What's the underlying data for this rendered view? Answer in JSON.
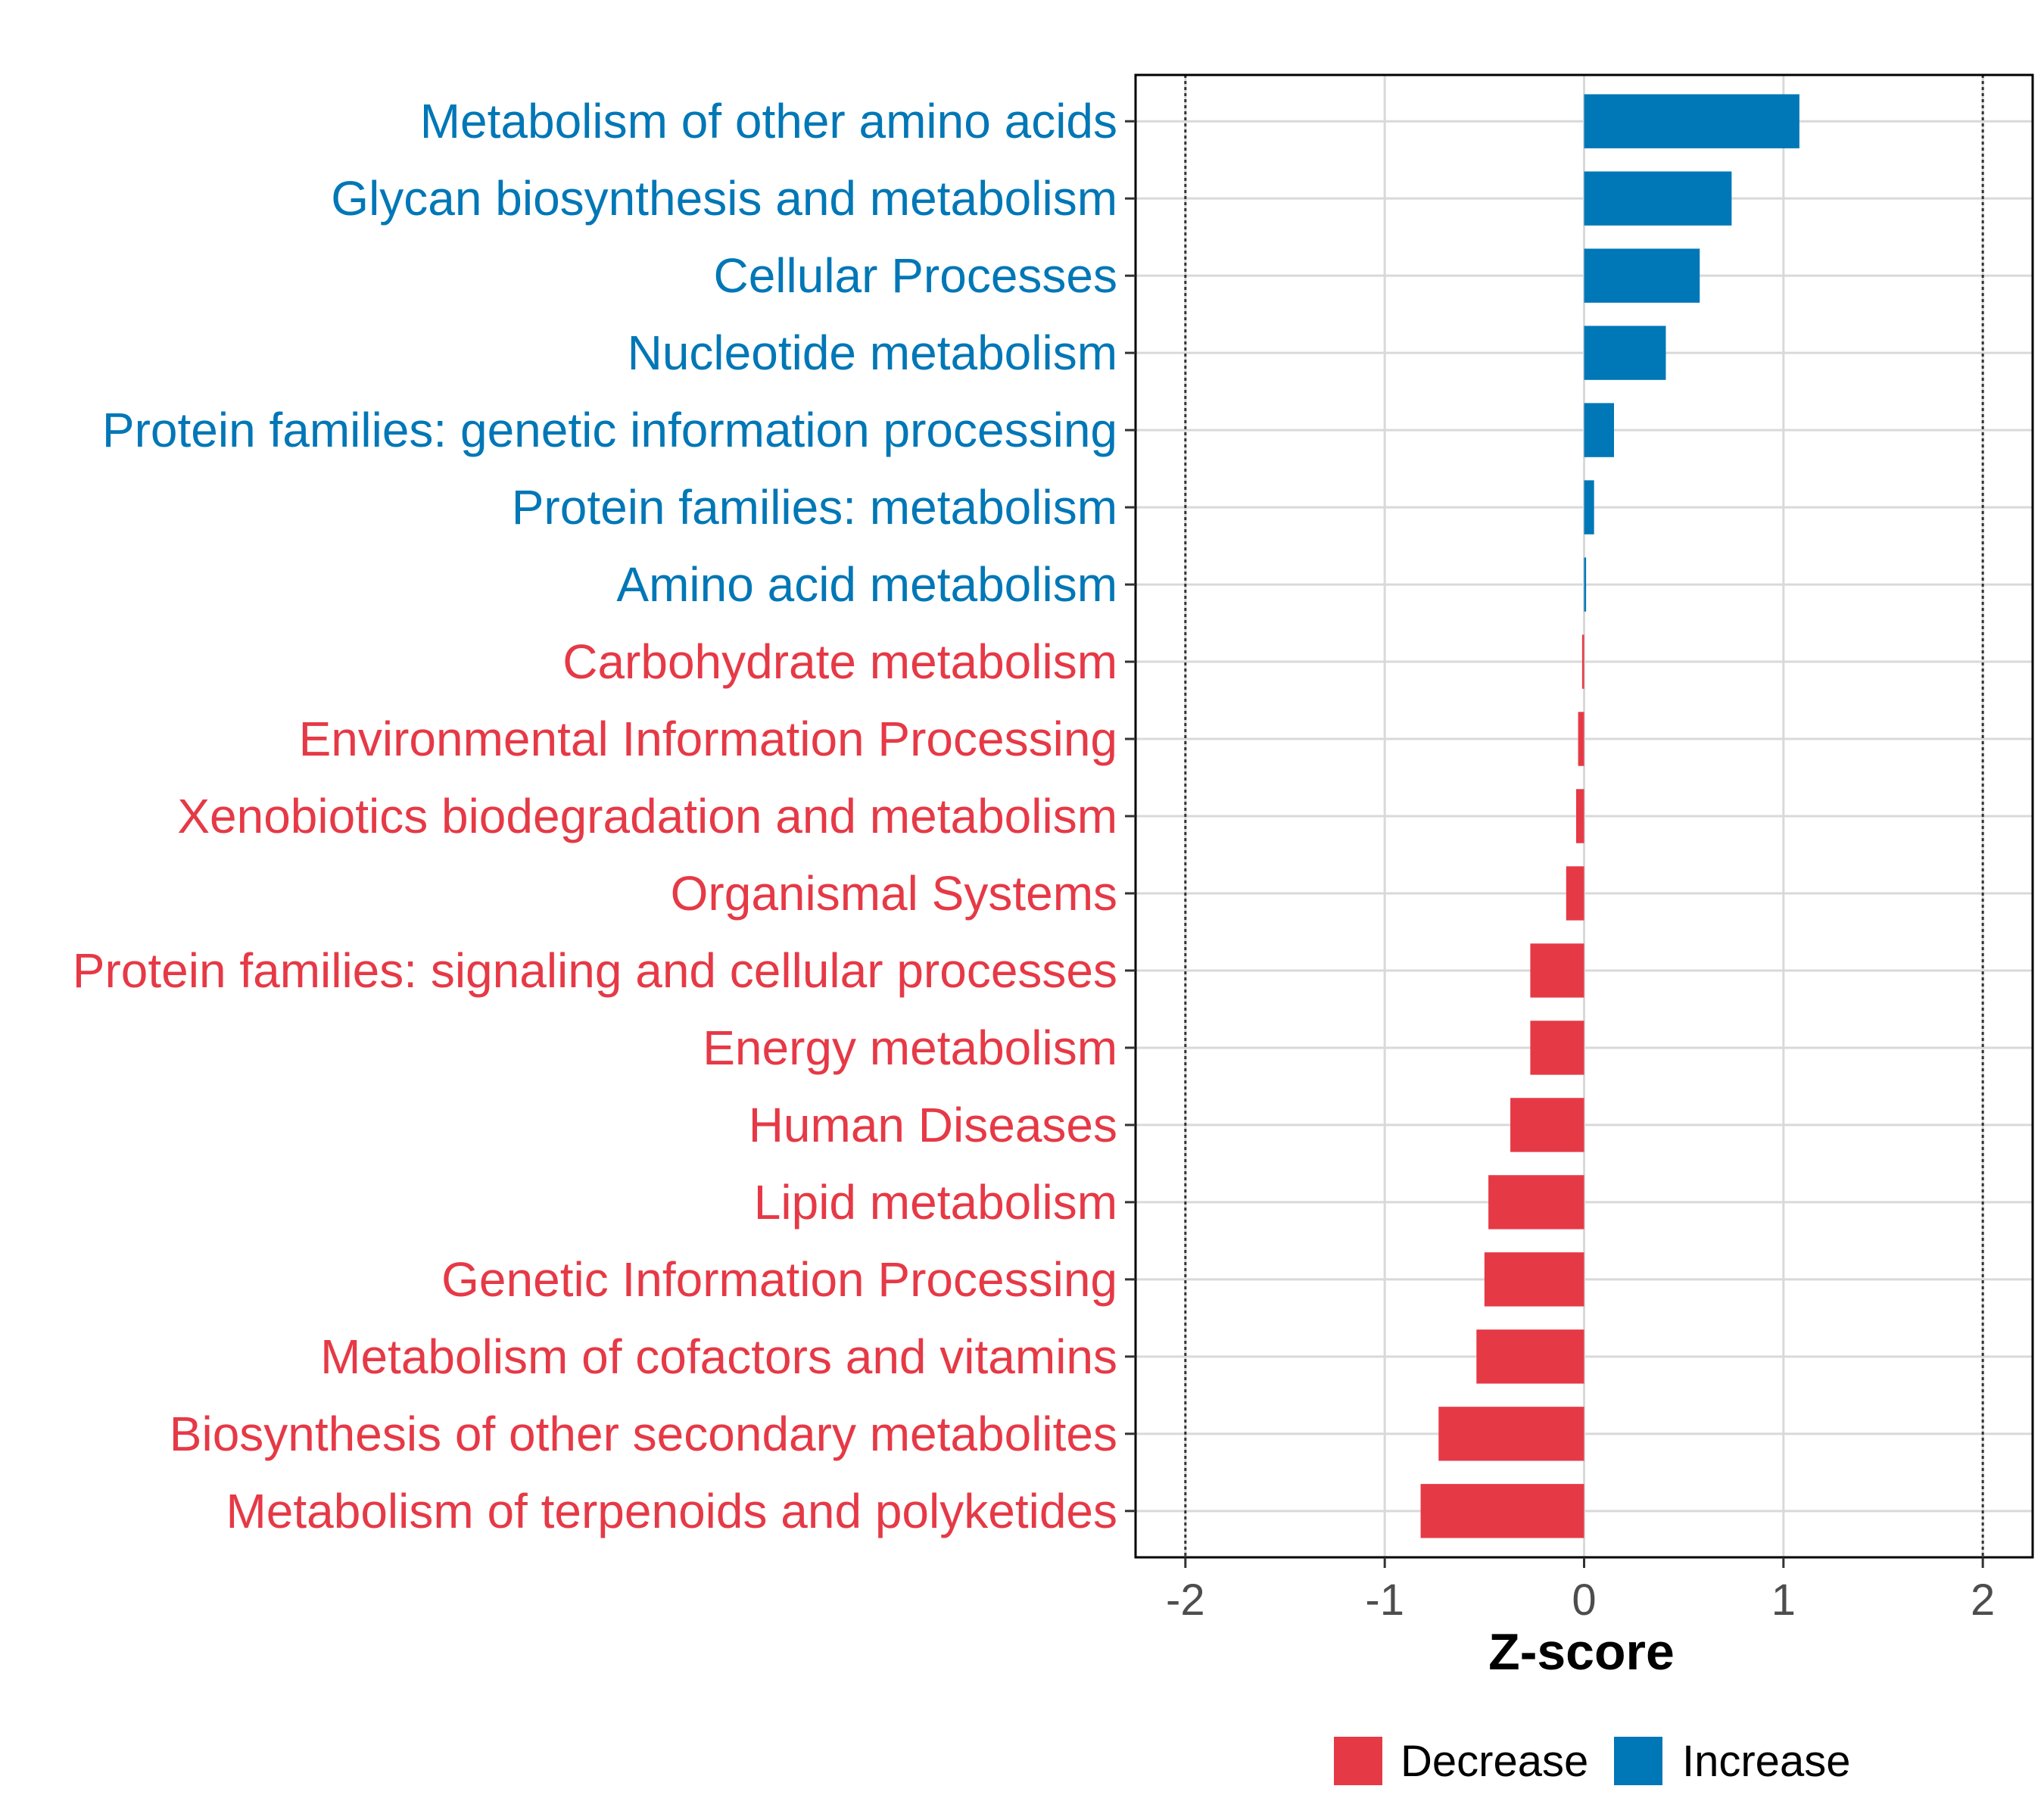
{
  "chart_data": {
    "type": "bar",
    "orientation": "horizontal",
    "xlabel": "Z-score",
    "xlim": [
      -2.25,
      2.25
    ],
    "xticks": [
      -2,
      -1,
      0,
      1,
      2
    ],
    "xtick_labels": [
      "-2",
      "-1",
      "0",
      "1",
      "2"
    ],
    "reference_lines": [
      -2,
      2
    ],
    "grid": true,
    "categories": [
      "Metabolism of other amino acids",
      "Glycan biosynthesis and metabolism",
      "Cellular Processes",
      "Nucleotide metabolism",
      "Protein families: genetic information processing",
      "Protein families: metabolism",
      "Amino acid metabolism",
      "Carbohydrate metabolism",
      "Environmental Information Processing",
      "Xenobiotics biodegradation and metabolism",
      "Organismal Systems",
      "Protein families: signaling and cellular processes",
      "Energy metabolism",
      "Human Diseases",
      "Lipid metabolism",
      "Genetic Information Processing",
      "Metabolism of cofactors and vitamins",
      "Biosynthesis of other secondary metabolites",
      "Metabolism of terpenoids and polyketides"
    ],
    "values": [
      1.08,
      0.74,
      0.58,
      0.41,
      0.15,
      0.05,
      0.01,
      -0.01,
      -0.03,
      -0.04,
      -0.09,
      -0.27,
      -0.27,
      -0.37,
      -0.48,
      -0.5,
      -0.54,
      -0.73,
      -0.82
    ],
    "groups": [
      "Increase",
      "Increase",
      "Increase",
      "Increase",
      "Increase",
      "Increase",
      "Increase",
      "Decrease",
      "Decrease",
      "Decrease",
      "Decrease",
      "Decrease",
      "Decrease",
      "Decrease",
      "Decrease",
      "Decrease",
      "Decrease",
      "Decrease",
      "Decrease"
    ],
    "legend": {
      "position": "bottom",
      "entries": [
        {
          "label": "Decrease",
          "color": "#e63946"
        },
        {
          "label": "Increase",
          "color": "#0077b6"
        }
      ]
    }
  }
}
